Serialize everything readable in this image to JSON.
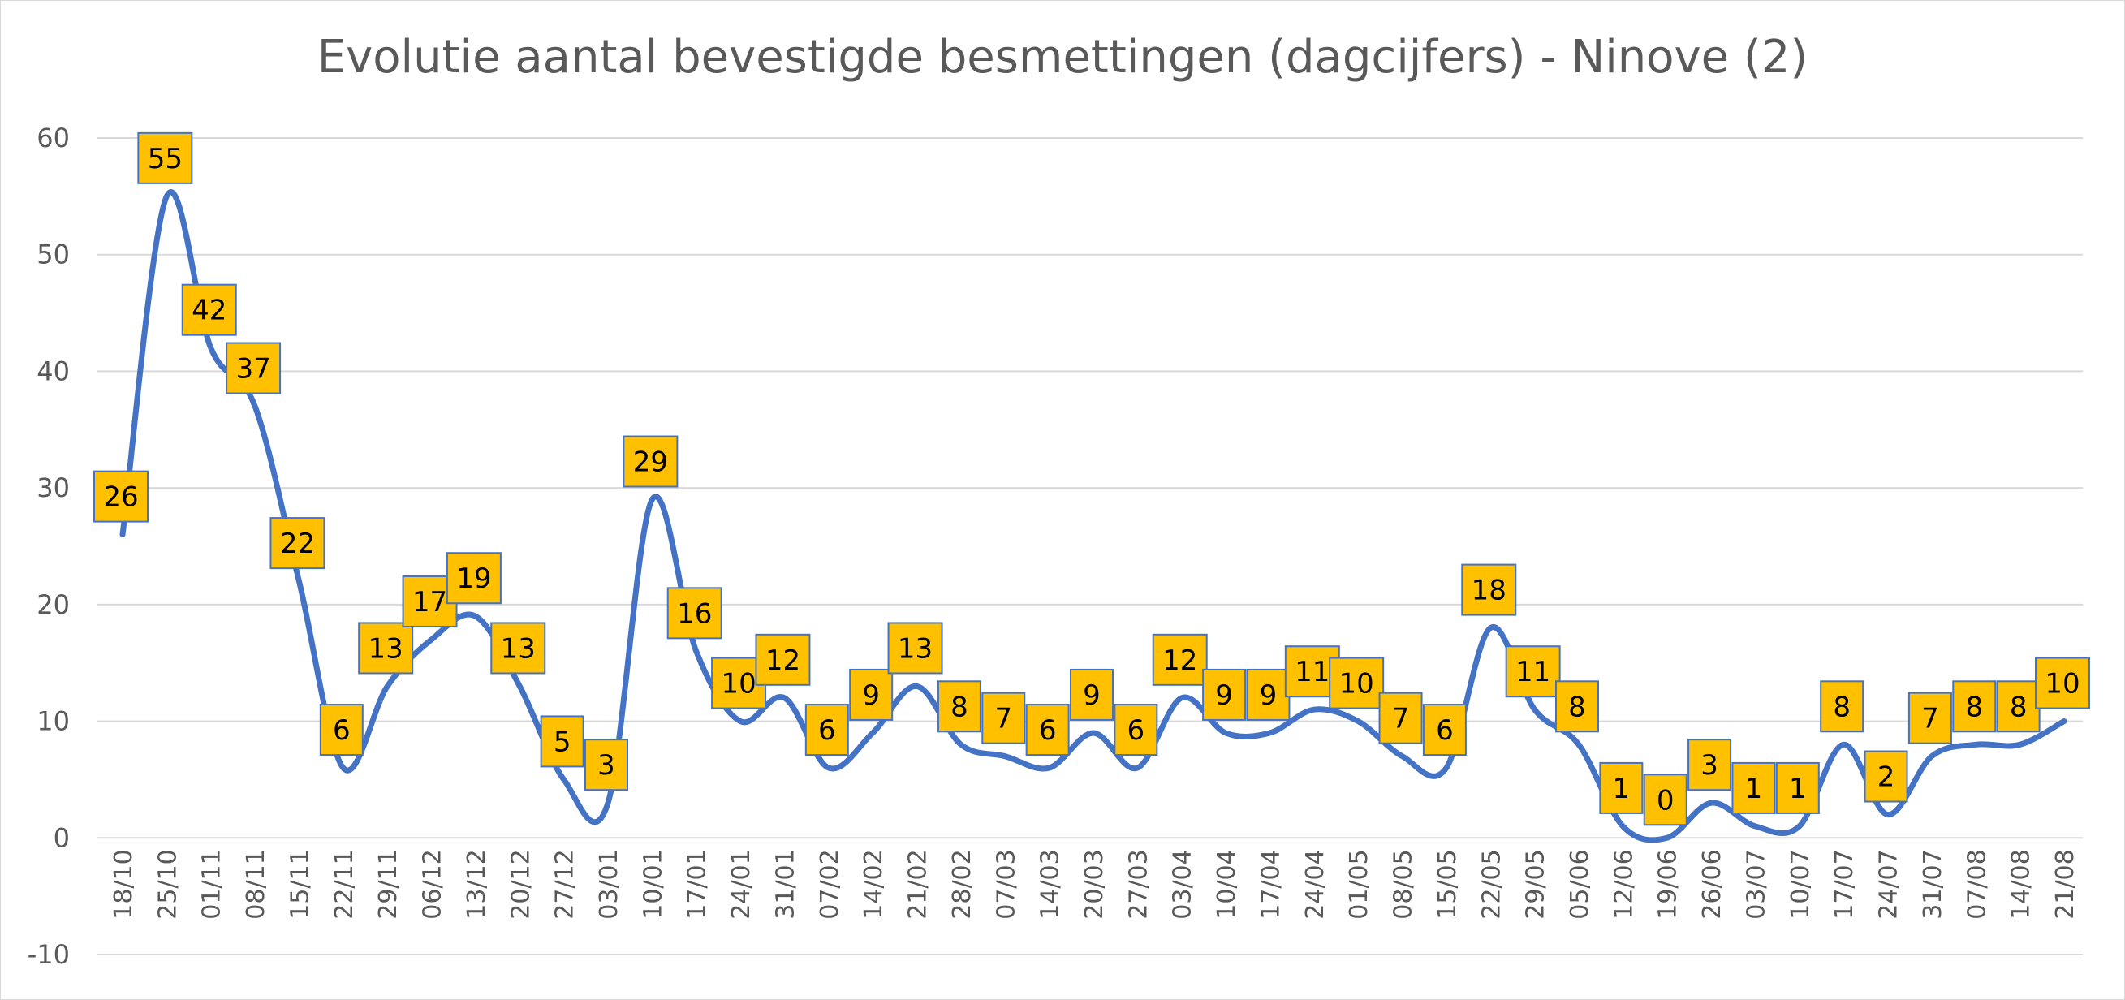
{
  "chart_data": {
    "type": "line",
    "title": "Evolutie aantal bevestigde besmettingen (dagcijfers) - Ninove (2)",
    "xlabel": "",
    "ylabel": "",
    "ylim": [
      -10,
      60
    ],
    "yticks": [
      -10,
      0,
      10,
      20,
      30,
      40,
      50,
      60
    ],
    "grid": true,
    "legend": "none",
    "smooth": true,
    "line_color": "#4472c4",
    "label_fill": "#ffc000",
    "categories": [
      "18/10",
      "25/10",
      "01/11",
      "08/11",
      "15/11",
      "22/11",
      "29/11",
      "06/12",
      "13/12",
      "20/12",
      "27/12",
      "03/01",
      "10/01",
      "17/01",
      "24/01",
      "31/01",
      "07/02",
      "14/02",
      "21/02",
      "28/02",
      "07/03",
      "14/03",
      "20/03",
      "27/03",
      "03/04",
      "10/04",
      "17/04",
      "24/04",
      "01/05",
      "08/05",
      "15/05",
      "22/05",
      "29/05",
      "05/06",
      "12/06",
      "19/06",
      "26/06",
      "03/07",
      "10/07",
      "17/07",
      "24/07",
      "31/07",
      "07/08",
      "14/08",
      "21/08"
    ],
    "series": [
      {
        "values": [
          26,
          55,
          42,
          37,
          22,
          6,
          13,
          17,
          19,
          13,
          5,
          3,
          29,
          16,
          10,
          12,
          6,
          9,
          13,
          8,
          7,
          6,
          9,
          6,
          12,
          9,
          9,
          11,
          10,
          7,
          6,
          18,
          11,
          8,
          1,
          0,
          3,
          1,
          1,
          8,
          2,
          7,
          8,
          8,
          10
        ]
      }
    ]
  }
}
